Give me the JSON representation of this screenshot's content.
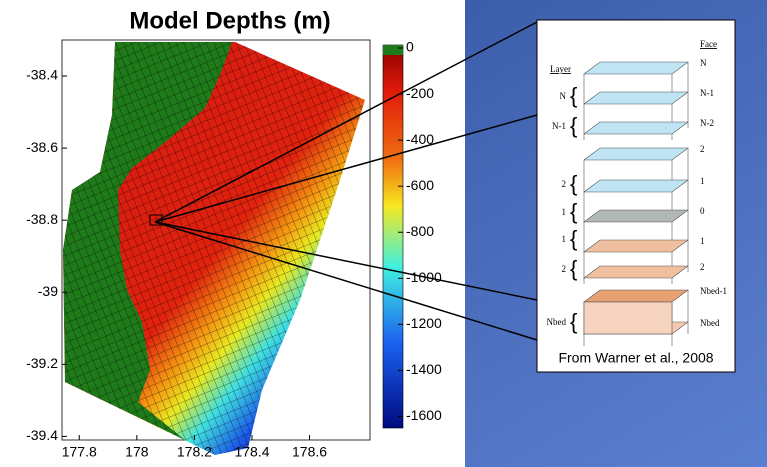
{
  "chart_data": {
    "type": "map",
    "title": "Model Depths (m)",
    "xlim": [
      177.74,
      178.81
    ],
    "xticks": [
      177.8,
      178,
      178.2,
      178.4,
      178.6
    ],
    "ylim": [
      -39.41,
      -38.3
    ],
    "yticks": [
      -38.4,
      -38.6,
      -38.8,
      -39,
      -39.2,
      -39.4
    ],
    "colorbar_lim": [
      -1650,
      0
    ],
    "colorbar_ticks": [
      0,
      -200,
      -400,
      -600,
      -800,
      -1000,
      -1200,
      -1400,
      -1600
    ]
  },
  "inset": {
    "layer_header": "Layer",
    "face_header": "Face",
    "face_labels": [
      "N",
      "N-1",
      "N-2",
      "2",
      "1",
      "0",
      "1",
      "2",
      "Nbed-1",
      "Nbed"
    ],
    "layer_labels": [
      "N",
      "N-1",
      "2",
      "1",
      "1",
      "2",
      "Nbed"
    ],
    "caption": "From Warner et al., 2008"
  }
}
